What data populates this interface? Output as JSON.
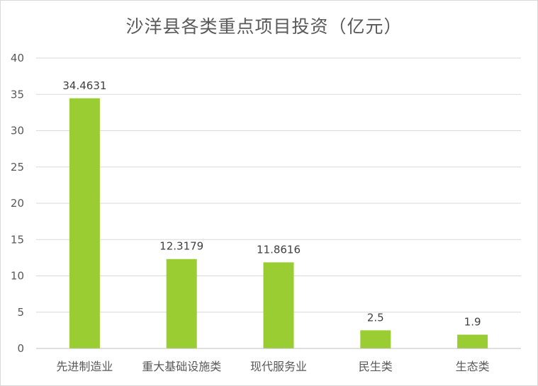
{
  "chart_data": {
    "type": "bar",
    "title": "沙洋县各类重点项目投资（亿元）",
    "categories": [
      "先进制造业",
      "重大基础设施类",
      "现代服务业",
      "民生类",
      "生态类"
    ],
    "values": [
      34.4631,
      12.3179,
      11.8616,
      2.5,
      1.9
    ],
    "data_labels": [
      "34.4631",
      "12.3179",
      "11.8616",
      "2.5",
      "1.9"
    ],
    "ylim": [
      0,
      40
    ],
    "yticks": [
      0,
      5,
      10,
      15,
      20,
      25,
      30,
      35,
      40
    ],
    "grid": true,
    "legend": "none",
    "colors": {
      "bar": "#9ACD32",
      "grid": "#d9d9d9",
      "text": "#595959"
    }
  }
}
